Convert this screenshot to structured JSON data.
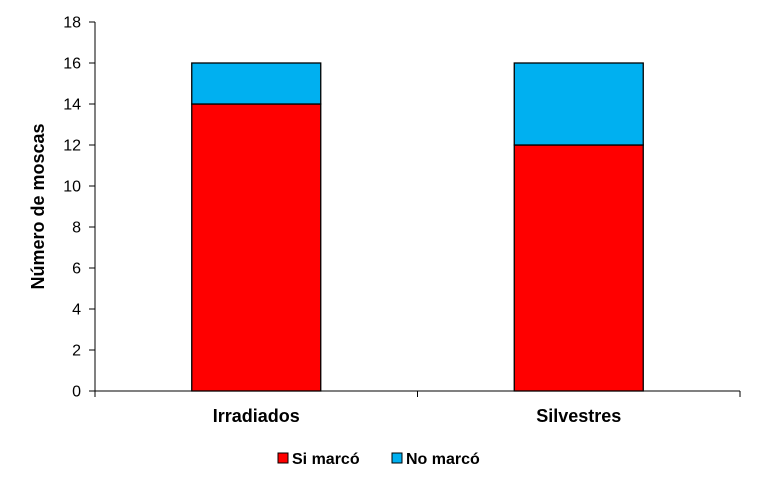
{
  "chart_data": {
    "type": "bar",
    "stacked": true,
    "categories": [
      "Irradiados",
      "Silvestres"
    ],
    "series": [
      {
        "name": "Si marcó",
        "values": [
          14,
          12
        ],
        "color": "#FF0000"
      },
      {
        "name": "No marcó",
        "values": [
          2,
          4
        ],
        "color": "#00B0F0"
      }
    ],
    "title": "",
    "xlabel": "",
    "ylabel": "Número de moscas",
    "ylim": [
      0,
      18
    ],
    "yticks": [
      0,
      2,
      4,
      6,
      8,
      10,
      12,
      14,
      16,
      18
    ],
    "grid": false,
    "legend_position": "bottom"
  }
}
